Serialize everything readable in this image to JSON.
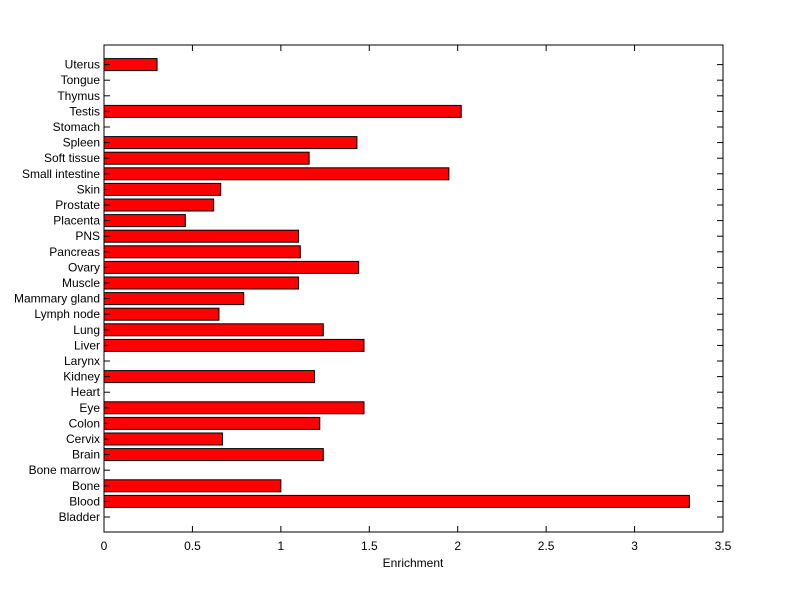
{
  "chart_data": {
    "type": "bar",
    "orientation": "horizontal",
    "title": "",
    "xlabel": "Enrichment",
    "ylabel": "",
    "xlim": [
      0,
      3.5
    ],
    "xticks": [
      "0",
      "0.5",
      "1",
      "1.5",
      "2",
      "2.5",
      "3",
      "3.5"
    ],
    "grid": false,
    "bar_color": "#ff0000",
    "categories": [
      "Bladder",
      "Blood",
      "Bone",
      "Bone marrow",
      "Brain",
      "Cervix",
      "Colon",
      "Eye",
      "Heart",
      "Kidney",
      "Larynx",
      "Liver",
      "Lung",
      "Lymph node",
      "Mammary gland",
      "Muscle",
      "Ovary",
      "Pancreas",
      "PNS",
      "Placenta",
      "Prostate",
      "Skin",
      "Small intestine",
      "Soft tissue",
      "Spleen",
      "Stomach",
      "Testis",
      "Thymus",
      "Tongue",
      "Uterus"
    ],
    "values": [
      0,
      3.31,
      1.0,
      0,
      1.24,
      0.67,
      1.22,
      1.47,
      0,
      1.19,
      0,
      1.47,
      1.24,
      0.65,
      0.79,
      1.1,
      1.44,
      1.11,
      1.1,
      0.46,
      0.62,
      0.66,
      1.95,
      1.16,
      1.43,
      0,
      2.02,
      0,
      0,
      0.3
    ]
  }
}
